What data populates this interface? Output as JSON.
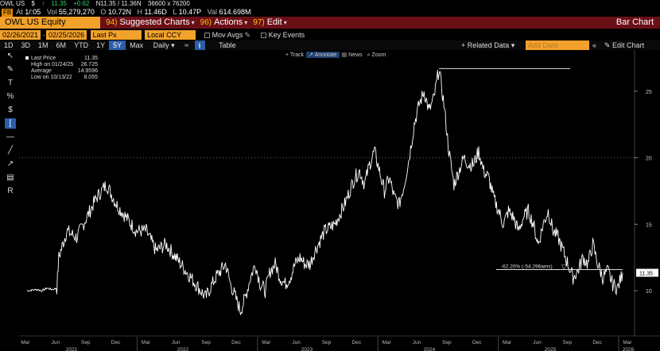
{
  "quote": {
    "ticker": "OWL US",
    "sign": "$",
    "arrow": "↑",
    "last": "11.35",
    "change": "+0.62",
    "bidask_label": "N11.35 / 11.36N",
    "size": "36600 x 76200"
  },
  "timebar": {
    "badge": "FB",
    "at_label": "At",
    "at": "1/:05",
    "vol_label": "Vol",
    "vol": "55,279,270",
    "open_label": "O",
    "open": "10.72N",
    "high_label": "H",
    "high": "11.46D",
    "low_label": "L",
    "low": "10.47P",
    "val_label": "Val",
    "val": "614.698M"
  },
  "titlebar": {
    "ticker": "OWL US Equity",
    "menu1_num": "94)",
    "menu1": "Suggested Charts",
    "menu2_num": "96)",
    "menu2": "Actions",
    "menu3_num": "97)",
    "menu3": "Edit",
    "right": "Bar Chart"
  },
  "params": {
    "start": "02/26/2021",
    "end": "02/25/2026",
    "field": "Last Px",
    "ccy": "Local CCY",
    "mov_avgs": "Mov Avgs",
    "key_events": "Key Events"
  },
  "ranges": {
    "items": [
      "1D",
      "3D",
      "1M",
      "6M",
      "YTD",
      "1Y",
      "5Y",
      "Max"
    ],
    "selected": "5Y",
    "period": "Daily",
    "table": "Table",
    "related": "+ Related Data",
    "add_data": "Add Data",
    "edit_chart": "Edit Chart"
  },
  "chart_tools": [
    "Track",
    "Annotate",
    "News",
    "Zoom"
  ],
  "legend": [
    {
      "label": "Last Price",
      "value": "11.35"
    },
    {
      "label": "High on 01/24/25",
      "value": "26.725"
    },
    {
      "label": "Average",
      "value": "14.9596"
    },
    {
      "label": "Low on 10/13/22",
      "value": "8.055"
    }
  ],
  "annotation": "-62.20% (-54.296ams)",
  "last_tag": "11.35",
  "colors": {
    "accent": "#f2a12b",
    "title_bar": "#6b0f16",
    "selected": "#2b5ea8",
    "quote_up": "#2bd46a"
  },
  "chart_data": {
    "type": "line",
    "series_name": "Last Price",
    "ylim": [
      7.5,
      27.5
    ],
    "yticks": [
      10,
      15,
      20,
      25
    ],
    "grid_y": [
      20
    ],
    "month_labels": [
      "Mar",
      "Jun",
      "Sep",
      "Dec",
      "Mar",
      "Jun",
      "Sep",
      "Dec",
      "Mar",
      "Jun",
      "Sep",
      "Dec",
      "Mar",
      "Jun",
      "Sep",
      "Dec",
      "Mar",
      "Jun",
      "Sep",
      "Dec",
      "Mar"
    ],
    "year_labels": [
      "2021",
      "2022",
      "2023",
      "2024",
      "2025",
      "2026"
    ],
    "x": [
      0,
      1,
      1.5,
      2,
      2.5,
      3,
      3.2,
      3.6,
      4,
      5,
      6,
      7,
      8,
      9,
      10,
      11,
      12,
      13,
      14,
      15,
      16,
      17,
      18,
      19,
      20,
      20.5,
      21,
      21.5,
      22,
      22.5,
      23,
      23.5,
      24,
      24.5,
      25,
      25.5,
      26,
      26.5,
      27,
      27.5,
      28,
      28.5,
      29,
      30,
      31,
      32,
      32.5,
      33,
      33.5,
      34,
      34.5,
      35,
      35.5,
      36,
      36.5,
      37,
      37.5,
      38,
      38.5,
      39,
      39.5,
      40,
      40.5,
      41,
      41.5,
      42,
      42.5,
      43,
      43.5,
      44,
      44.5,
      45,
      45.5,
      46,
      46.5,
      47,
      47.5,
      48,
      48.5,
      49,
      49.5,
      50,
      50.5,
      51,
      51.5,
      52,
      52.5,
      53,
      53.5,
      54,
      54.5,
      55,
      55.5,
      56,
      56.5,
      57,
      57.5,
      58,
      58.5,
      59,
      59.5,
      60
    ],
    "values": [
      10,
      10.1,
      10,
      10.2,
      10.1,
      10.2,
      12.5,
      13.5,
      14.5,
      14,
      15.5,
      17,
      18,
      16.5,
      15.5,
      14.5,
      14.5,
      13,
      13.5,
      12.5,
      11.5,
      10.5,
      9.5,
      11,
      12,
      10.5,
      9.5,
      8.5,
      9.5,
      11,
      12,
      10.5,
      10,
      11.5,
      12,
      11,
      10.5,
      11,
      12,
      12.5,
      12,
      12,
      13,
      14.5,
      15,
      16.5,
      17.5,
      18.5,
      19,
      18,
      19.5,
      20.5,
      19,
      17.5,
      18.5,
      17,
      16.5,
      18,
      20,
      22.5,
      24,
      25,
      23.5,
      24.5,
      26.7,
      24,
      20.5,
      18,
      19,
      20,
      19.5,
      19.5,
      20.5,
      19,
      18.5,
      17,
      16,
      15,
      16,
      15.5,
      14.5,
      15.5,
      16,
      15,
      13.5,
      15,
      16,
      14.5,
      14,
      13,
      12,
      11,
      11.5,
      12.5,
      12,
      13.5,
      12,
      11,
      11.5,
      10.5,
      10.2,
      11.35
    ]
  }
}
